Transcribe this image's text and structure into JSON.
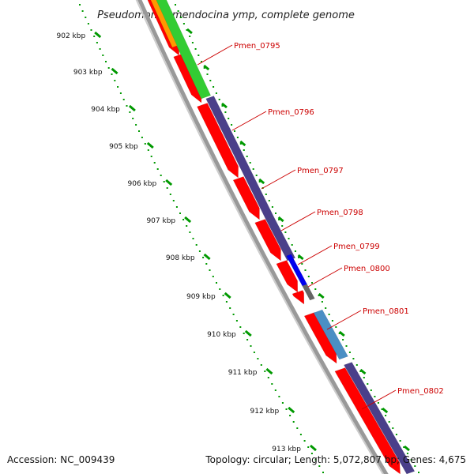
{
  "title": "Pseudomonas mendocina ymp, complete genome",
  "accession": "Accession: NC_009439",
  "topology": "Topology: circular; Length: 5,072,807 bp; Genes: 4,675",
  "colors": {
    "cds_forward_red": "#ff0000",
    "cds_reverse_purple": "#4a3f8a",
    "gene_green": "#33cc33",
    "gene_orange": "#ff9900",
    "gene_blue": "#0000ee",
    "gene_steelblue": "#4a8fc4",
    "backbone_gray": "#888888",
    "tick_green": "#009900",
    "label_red": "#cc0000"
  },
  "ruler": [
    {
      "label": "902 kbp"
    },
    {
      "label": "903 kbp"
    },
    {
      "label": "904 kbp"
    },
    {
      "label": "905 kbp"
    },
    {
      "label": "906 kbp"
    },
    {
      "label": "907 kbp"
    },
    {
      "label": "908 kbp"
    },
    {
      "label": "909 kbp"
    },
    {
      "label": "910 kbp"
    },
    {
      "label": "911 kbp"
    },
    {
      "label": "912 kbp"
    },
    {
      "label": "913 kbp"
    }
  ],
  "gene_labels": [
    {
      "name": "Pmen_0795"
    },
    {
      "name": "Pmen_0796"
    },
    {
      "name": "Pmen_0797"
    },
    {
      "name": "Pmen_0798"
    },
    {
      "name": "Pmen_0799"
    },
    {
      "name": "Pmen_0800"
    },
    {
      "name": "Pmen_0801"
    },
    {
      "name": "Pmen_0802"
    }
  ]
}
